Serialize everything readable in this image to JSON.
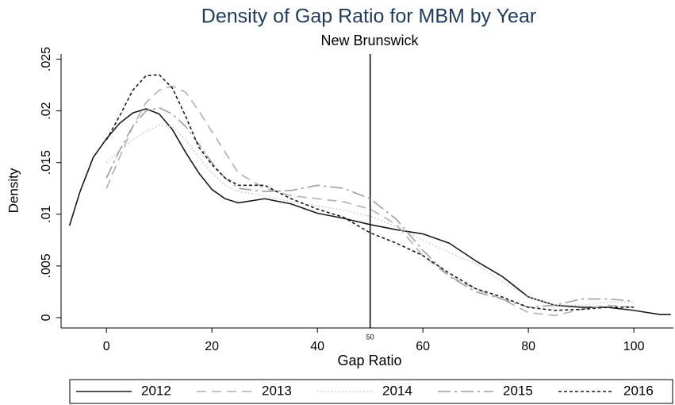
{
  "chart_data": {
    "type": "line",
    "title": "Density of Gap Ratio for MBM by Year",
    "subtitle": "New Brunswick",
    "x_label": "Gap Ratio",
    "y_label": "Density",
    "xlim": [
      -8.6,
      107.5
    ],
    "ylim": [
      -0.001,
      0.0255
    ],
    "xticks": [
      0,
      20,
      40,
      60,
      80,
      100
    ],
    "yticks": [
      0,
      {
        "value": 0.005,
        "label": ".005"
      },
      {
        "value": 0.01,
        "label": ".01"
      },
      {
        "value": 0.015,
        "label": ".015"
      },
      {
        "value": 0.02,
        "label": ".02"
      },
      {
        "value": 0.025,
        "label": ".025"
      }
    ],
    "reference_line": {
      "x": 50,
      "label": "50"
    },
    "x": [
      -7,
      -5,
      -2.5,
      0,
      2.5,
      5,
      7.5,
      10,
      12.5,
      15,
      17.5,
      20,
      22.5,
      25,
      30,
      35,
      40,
      45,
      50,
      55,
      60,
      65,
      70,
      75,
      80,
      85,
      90,
      95,
      100,
      105,
      107
    ],
    "series": [
      {
        "name": "2012",
        "color": "#1a1a1a",
        "dash": "solid",
        "values": [
          0.0089,
          0.0122,
          0.0155,
          0.0173,
          0.0188,
          0.0198,
          0.0202,
          0.0197,
          0.0182,
          0.016,
          0.014,
          0.0124,
          0.0115,
          0.0111,
          0.0115,
          0.011,
          0.0101,
          0.0096,
          0.009,
          0.0085,
          0.0081,
          0.0072,
          0.0055,
          0.004,
          0.002,
          0.0012,
          0.001,
          0.001,
          0.0007,
          0.0003,
          0.0003
        ]
      },
      {
        "name": "2013",
        "color": "#b0b0b0",
        "dash": "dash",
        "values": [
          null,
          null,
          null,
          0.0125,
          0.0155,
          0.0185,
          0.0208,
          0.022,
          0.0224,
          0.0218,
          0.02,
          0.018,
          0.016,
          0.014,
          0.0125,
          0.0118,
          0.0115,
          0.0112,
          0.0105,
          0.009,
          0.006,
          0.004,
          0.0028,
          0.0018,
          0.0005,
          0.0002,
          0.0008,
          0.0012,
          0.001,
          null,
          null
        ]
      },
      {
        "name": "2014",
        "color": "#c8c8c8",
        "dash": "dot",
        "values": [
          null,
          null,
          null,
          0.015,
          0.0162,
          0.0172,
          0.018,
          0.0186,
          0.0185,
          0.0172,
          0.0155,
          0.014,
          0.0128,
          0.0122,
          0.0118,
          0.0112,
          0.0108,
          0.0104,
          0.0098,
          0.0088,
          0.0075,
          0.0063,
          0.0052,
          0.0035,
          0.002,
          0.0012,
          0.0012,
          0.0015,
          0.0015,
          null,
          null
        ]
      },
      {
        "name": "2015",
        "color": "#a0a0a0",
        "dash": "longdash-dot",
        "values": [
          null,
          null,
          null,
          0.0135,
          0.0162,
          0.0185,
          0.02,
          0.0203,
          0.0197,
          0.0185,
          0.0168,
          0.015,
          0.0135,
          0.0125,
          0.0122,
          0.0123,
          0.0128,
          0.0125,
          0.0115,
          0.0095,
          0.0065,
          0.004,
          0.0025,
          0.0018,
          0.001,
          0.0012,
          0.0018,
          0.0018,
          0.0016,
          null,
          null
        ]
      },
      {
        "name": "2016",
        "color": "#1a1a1a",
        "dash": "shortdash",
        "values": [
          null,
          null,
          null,
          0.0172,
          0.0195,
          0.022,
          0.0234,
          0.0235,
          0.0222,
          0.0195,
          0.0165,
          0.0148,
          0.0135,
          0.0128,
          0.0128,
          0.0115,
          0.0105,
          0.0097,
          0.0082,
          0.0072,
          0.006,
          0.0043,
          0.0028,
          0.002,
          0.001,
          0.0007,
          0.0008,
          0.001,
          0.001,
          null,
          null
        ]
      }
    ]
  }
}
